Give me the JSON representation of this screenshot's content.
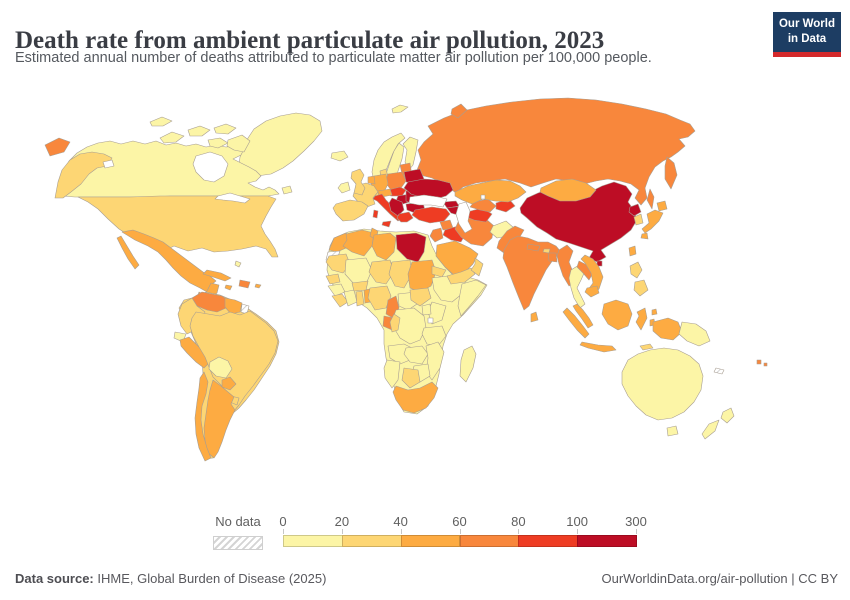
{
  "header": {
    "title": "Death rate from ambient particulate air pollution, 2023",
    "subtitle": "Estimated annual number of deaths attributed to particulate matter air pollution per 100,000 people.",
    "logo": {
      "line1": "Our World",
      "line2": "in Data",
      "bg_color": "#1d3d63",
      "strip_color": "#d4292b"
    }
  },
  "legend": {
    "no_data_label": "No data",
    "ticks": [
      "0",
      "20",
      "40",
      "60",
      "80",
      "100",
      "300"
    ]
  },
  "footer": {
    "source_label": "Data source:",
    "source_text": " IHME, Global Burden of Disease (2025)",
    "right_text": "OurWorldinData.org/air-pollution | CC BY"
  },
  "chart_data": {
    "type": "choropleth_map",
    "title": "Death rate from ambient particulate air pollution, 2023",
    "subtitle": "Estimated annual number of deaths attributed to particulate matter air pollution per 100,000 people.",
    "unit": "deaths per 100,000 people",
    "year": 2023,
    "legend_position": "bottom",
    "bin_ranges": [
      "0-20",
      "20-40",
      "40-60",
      "60-80",
      "80-100",
      "100-300"
    ],
    "palette": [
      "#fcf5a6",
      "#fdd674",
      "#fdab42",
      "#f8873c",
      "#ee3c23",
      "#bd0d25"
    ],
    "no_data_bin": 0,
    "region_bins": {
      "russia": 4,
      "kamchatka": 4,
      "sakhalin": 4,
      "chukotka_wrap": 4,
      "novaya_zemlya": 4,
      "svalbard": 1,
      "greenland": 1,
      "canada": 1,
      "c_isl1": 1,
      "c_isl2": 1,
      "c_isl3": 1,
      "c_isl4": 1,
      "c_isl5": 1,
      "baffin": 1,
      "newfoundland": 1,
      "alaska": 2,
      "usa": 2,
      "mexico": 3,
      "baja": 3,
      "yucatan": 3,
      "guatemala": 3,
      "honduras": 4,
      "nicaragua": 1,
      "costa_rica": 2,
      "panama": 2,
      "cuba": 3,
      "hispaniola": 4,
      "jamaica": 3,
      "bahamas": 1,
      "puerto_rico": 3,
      "sa_base": 2,
      "venezuela": 4,
      "colombia": 2,
      "guyana": 3,
      "french_guiana": 0,
      "ecuador": 1,
      "peru": 3,
      "brazil": 2,
      "bolivia": 1,
      "paraguay": 3,
      "uruguay": 2,
      "argentina": 3,
      "chile": 3,
      "africa_base": 1,
      "morocco": 3,
      "western_sahara": 0,
      "algeria": 3,
      "tunisia": 3,
      "libya": 3,
      "egypt": 6,
      "mauritania": 2,
      "mali": 1,
      "niger": 2,
      "chad": 2,
      "sudan": 3,
      "eritrea": 2,
      "senegal": 2,
      "guinea": 1,
      "sierra_leone_liberia": 2,
      "cote_ivoire": 1,
      "ghana": 2,
      "togo_benin": 3,
      "burkina": 2,
      "nigeria": 2,
      "cameroon": 4,
      "car": 1,
      "south_sudan": 2,
      "ethiopia": 1,
      "somalia": 1,
      "kenya": 1,
      "uganda": 1,
      "drc": 1,
      "gabon": 4,
      "congo": 2,
      "tanzania": 1,
      "angola": 1,
      "zambia": 1,
      "malawi_mozambique": 1,
      "zimbabwe": 1,
      "botswana": 2,
      "namibia": 1,
      "south_africa": 3,
      "madagascar": 1,
      "iceland": 1,
      "norway": 1,
      "sweden": 1,
      "finland": 1,
      "denmark": 2,
      "baltics": 4,
      "belarus": 6,
      "poland": 4,
      "germany": 3,
      "benelux": 3,
      "czech_slovakia": 5,
      "austria": 3,
      "switzerland": 2,
      "france": 2,
      "iberia": 2,
      "italy": 5,
      "sicily": 5,
      "sardinia": 5,
      "hungary": 6,
      "romania": 6,
      "balkans_west": 6,
      "bulgaria": 6,
      "greece": 5,
      "uk": 2,
      "ireland": 1,
      "ukraine": 6,
      "turkey": 5,
      "georgia": 6,
      "armenia_azerbaijan": 6,
      "syria": 4,
      "jordan_israel": 4,
      "iraq": 5,
      "saudi_arabia": 3,
      "yemen": 2,
      "oman": 2,
      "iran": 4,
      "afghanistan": 1,
      "turkmenistan": 5,
      "uzbekistan": 4,
      "kyrgyz_tajik": 5,
      "kazakhstan": 3,
      "pakistan": 4,
      "india": 4,
      "nepal": 4,
      "bhutan": 2,
      "bangladesh": 4,
      "sri_lanka": 3,
      "china": 6,
      "mongolia": 3,
      "north_korea": 6,
      "south_korea": 2,
      "hokkaido": 3,
      "honshu": 3,
      "kyushu": 3,
      "taiwan": 3,
      "hainan": 6,
      "myanmar": 4,
      "thailand": 1,
      "laos": 4,
      "vietnam": 3,
      "cambodia": 3,
      "malaysia": 3,
      "sumatra": 3,
      "java": 3,
      "borneo": 3,
      "sulawesi": 3,
      "philippines_north": 2,
      "philippines_south": 2,
      "moluccas": 3,
      "halmahera": 3,
      "new_guinea_west": 3,
      "papua_new_guinea": 1,
      "timor": 2,
      "australia": 1,
      "tasmania": 1,
      "nz_north": 1,
      "nz_south": 1,
      "fiji": 4,
      "fiji2": 4,
      "new_caledonia": 0
    }
  }
}
